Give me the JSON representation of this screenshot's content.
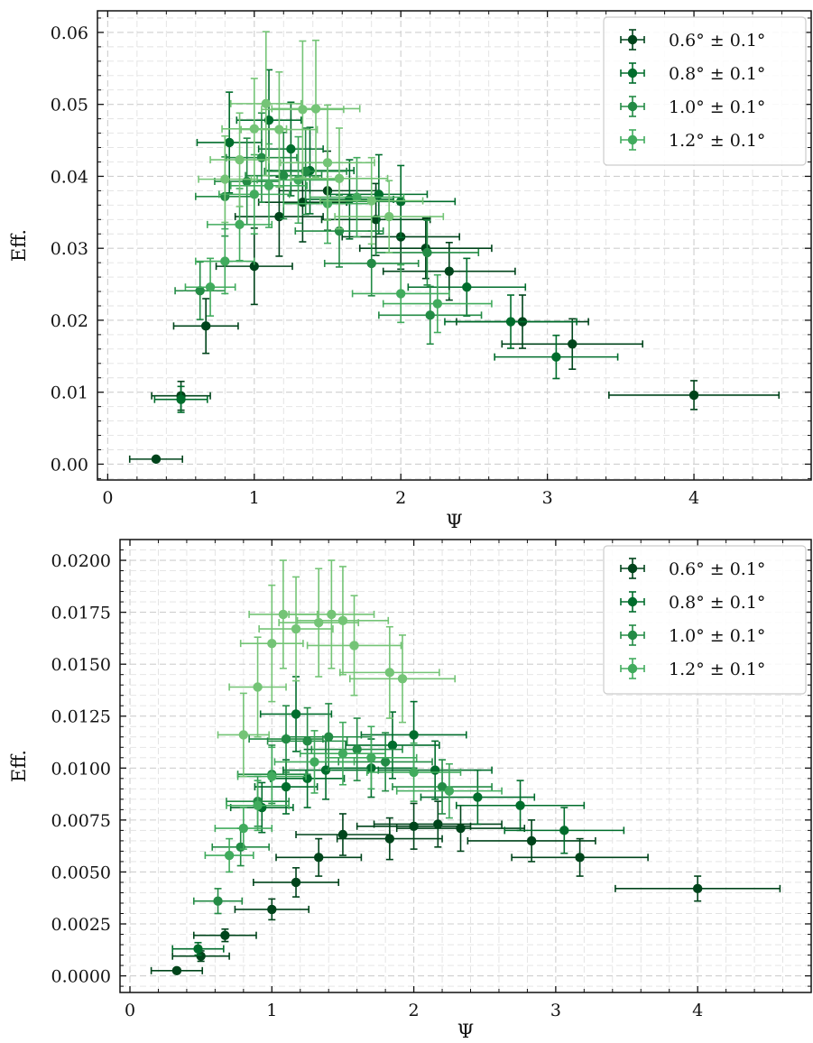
{
  "chart_data": [
    {
      "type": "scatter",
      "title": "",
      "xlabel": "Ψ",
      "ylabel": "Eff.",
      "xlim": [
        -0.07,
        4.8
      ],
      "ylim": [
        -0.0022,
        0.063
      ],
      "x_ticks": [
        0,
        1,
        2,
        3,
        4
      ],
      "x_tick_labels": [
        "0",
        "1",
        "2",
        "3",
        "4"
      ],
      "y_ticks": [
        0.0,
        0.01,
        0.02,
        0.03,
        0.04,
        0.05,
        0.06
      ],
      "y_tick_labels": [
        "0.00",
        "0.01",
        "0.02",
        "0.03",
        "0.04",
        "0.05",
        "0.06"
      ],
      "grid": true,
      "legend_position": "top-right",
      "series": [
        {
          "name": "0.6$^\\circ \\pm 0.1^\\circ$",
          "label": "0.6° ± 0.1°",
          "color": "#00441b",
          "points": [
            {
              "x": 0.33,
              "y": 0.0007,
              "xerr": 0.18,
              "yerr": 0.0003
            },
            {
              "x": 0.5,
              "y": 0.0095,
              "xerr": 0.2,
              "yerr": 0.002
            },
            {
              "x": 0.67,
              "y": 0.0192,
              "xerr": 0.22,
              "yerr": 0.0038
            },
            {
              "x": 1.0,
              "y": 0.0275,
              "xerr": 0.26,
              "yerr": 0.0053
            },
            {
              "x": 1.17,
              "y": 0.0344,
              "xerr": 0.3,
              "yerr": 0.0055
            },
            {
              "x": 1.33,
              "y": 0.0364,
              "xerr": 0.3,
              "yerr": 0.0055
            },
            {
              "x": 1.5,
              "y": 0.038,
              "xerr": 0.33,
              "yerr": 0.0055
            },
            {
              "x": 1.83,
              "y": 0.034,
              "xerr": 0.37,
              "yerr": 0.005
            },
            {
              "x": 2.0,
              "y": 0.0316,
              "xerr": 0.4,
              "yerr": 0.0045
            },
            {
              "x": 2.17,
              "y": 0.03,
              "xerr": 0.45,
              "yerr": 0.0042
            },
            {
              "x": 2.33,
              "y": 0.0268,
              "xerr": 0.45,
              "yerr": 0.004
            },
            {
              "x": 2.83,
              "y": 0.0198,
              "xerr": 0.45,
              "yerr": 0.0037
            },
            {
              "x": 3.17,
              "y": 0.0167,
              "xerr": 0.48,
              "yerr": 0.0035
            },
            {
              "x": 4.0,
              "y": 0.0096,
              "xerr": 0.58,
              "yerr": 0.002
            }
          ]
        },
        {
          "name": "0.8$^\\circ \\pm 0.1^\\circ$",
          "label": "0.8° ± 0.1°",
          "color": "#006d2c",
          "points": [
            {
              "x": 0.5,
              "y": 0.009,
              "xerr": 0.18,
              "yerr": 0.0018
            },
            {
              "x": 0.83,
              "y": 0.0447,
              "xerr": 0.22,
              "yerr": 0.007
            },
            {
              "x": 1.1,
              "y": 0.0478,
              "xerr": 0.22,
              "yerr": 0.007
            },
            {
              "x": 1.25,
              "y": 0.0438,
              "xerr": 0.22,
              "yerr": 0.0065
            },
            {
              "x": 1.38,
              "y": 0.0408,
              "xerr": 0.3,
              "yerr": 0.006
            },
            {
              "x": 1.65,
              "y": 0.0368,
              "xerr": 0.3,
              "yerr": 0.0055
            },
            {
              "x": 1.85,
              "y": 0.0375,
              "xerr": 0.33,
              "yerr": 0.0055
            },
            {
              "x": 2.0,
              "y": 0.0365,
              "xerr": 0.37,
              "yerr": 0.005
            },
            {
              "x": 2.45,
              "y": 0.0246,
              "xerr": 0.4,
              "yerr": 0.004
            },
            {
              "x": 2.75,
              "y": 0.0198,
              "xerr": 0.45,
              "yerr": 0.0037
            },
            {
              "x": 3.06,
              "y": 0.0149,
              "xerr": 0.42,
              "yerr": 0.003
            }
          ]
        },
        {
          "name": "1.0$^\\circ \\pm 0.1^\\circ$",
          "label": "1.0° ± 0.1°",
          "color": "#238b45",
          "points": [
            {
              "x": 0.63,
              "y": 0.0241,
              "xerr": 0.17,
              "yerr": 0.004
            },
            {
              "x": 0.8,
              "y": 0.0372,
              "xerr": 0.2,
              "yerr": 0.0055
            },
            {
              "x": 0.95,
              "y": 0.0393,
              "xerr": 0.22,
              "yerr": 0.006
            },
            {
              "x": 1.05,
              "y": 0.0426,
              "xerr": 0.24,
              "yerr": 0.0062
            },
            {
              "x": 1.2,
              "y": 0.0401,
              "xerr": 0.26,
              "yerr": 0.006
            },
            {
              "x": 1.35,
              "y": 0.0407,
              "xerr": 0.28,
              "yerr": 0.006
            },
            {
              "x": 1.58,
              "y": 0.0324,
              "xerr": 0.3,
              "yerr": 0.005
            },
            {
              "x": 1.8,
              "y": 0.0279,
              "xerr": 0.32,
              "yerr": 0.0045
            },
            {
              "x": 2.18,
              "y": 0.0294,
              "xerr": 0.35,
              "yerr": 0.0045
            },
            {
              "x": 2.2,
              "y": 0.0207,
              "xerr": 0.35,
              "yerr": 0.004
            }
          ]
        },
        {
          "name": "1.2$^\\circ \\pm 0.1^\\circ$",
          "label": "1.2° ± 0.1°",
          "color": "#41ab5d",
          "points": [
            {
              "x": 0.7,
              "y": 0.0246,
              "xerr": 0.17,
              "yerr": 0.004
            },
            {
              "x": 0.8,
              "y": 0.0282,
              "xerr": 0.2,
              "yerr": 0.0045
            },
            {
              "x": 0.9,
              "y": 0.0333,
              "xerr": 0.22,
              "yerr": 0.005
            },
            {
              "x": 1.0,
              "y": 0.0375,
              "xerr": 0.24,
              "yerr": 0.0055
            },
            {
              "x": 1.1,
              "y": 0.0387,
              "xerr": 0.26,
              "yerr": 0.0058
            },
            {
              "x": 1.3,
              "y": 0.0395,
              "xerr": 0.28,
              "yerr": 0.006
            },
            {
              "x": 1.5,
              "y": 0.0362,
              "xerr": 0.3,
              "yerr": 0.0055
            },
            {
              "x": 1.7,
              "y": 0.0371,
              "xerr": 0.32,
              "yerr": 0.0055
            },
            {
              "x": 2.0,
              "y": 0.0237,
              "xerr": 0.33,
              "yerr": 0.004
            },
            {
              "x": 2.25,
              "y": 0.0223,
              "xerr": 0.37,
              "yerr": 0.004
            }
          ]
        },
        {
          "name": "",
          "label": "",
          "color": "#74c476",
          "points": [
            {
              "x": 0.8,
              "y": 0.0396,
              "xerr": 0.18,
              "yerr": 0.006
            },
            {
              "x": 0.9,
              "y": 0.0423,
              "xerr": 0.2,
              "yerr": 0.0065
            },
            {
              "x": 1.0,
              "y": 0.0466,
              "xerr": 0.22,
              "yerr": 0.007
            },
            {
              "x": 1.08,
              "y": 0.0501,
              "xerr": 0.24,
              "yerr": 0.01
            },
            {
              "x": 1.17,
              "y": 0.0465,
              "xerr": 0.26,
              "yerr": 0.008
            },
            {
              "x": 1.33,
              "y": 0.0493,
              "xerr": 0.28,
              "yerr": 0.0095
            },
            {
              "x": 1.42,
              "y": 0.0494,
              "xerr": 0.3,
              "yerr": 0.0095
            },
            {
              "x": 1.5,
              "y": 0.0419,
              "xerr": 0.32,
              "yerr": 0.008
            },
            {
              "x": 1.58,
              "y": 0.0397,
              "xerr": 0.33,
              "yerr": 0.007
            },
            {
              "x": 1.8,
              "y": 0.0366,
              "xerr": 0.35,
              "yerr": 0.006
            },
            {
              "x": 1.92,
              "y": 0.0344,
              "xerr": 0.37,
              "yerr": 0.005
            }
          ]
        }
      ]
    },
    {
      "type": "scatter",
      "title": "",
      "xlabel": "Ψ",
      "ylabel": "Eff.",
      "xlim": [
        -0.07,
        4.8
      ],
      "ylim": [
        -0.0008,
        0.021
      ],
      "x_ticks": [
        0,
        1,
        2,
        3,
        4
      ],
      "x_tick_labels": [
        "0",
        "1",
        "2",
        "3",
        "4"
      ],
      "y_ticks": [
        0.0,
        0.0025,
        0.005,
        0.0075,
        0.01,
        0.0125,
        0.015,
        0.0175,
        0.02
      ],
      "y_tick_labels": [
        "0.0000",
        "0.0025",
        "0.0050",
        "0.0075",
        "0.0100",
        "0.0125",
        "0.0150",
        "0.0175",
        "0.0200"
      ],
      "grid": true,
      "legend_position": "top-right",
      "series": [
        {
          "name": "0.6$^\\circ \\pm 0.1^\\circ$",
          "label": "0.6° ± 0.1°",
          "color": "#00441b",
          "points": [
            {
              "x": 0.33,
              "y": 0.00025,
              "xerr": 0.18,
              "yerr": 0.0001
            },
            {
              "x": 0.5,
              "y": 0.00095,
              "xerr": 0.2,
              "yerr": 0.00025
            },
            {
              "x": 0.67,
              "y": 0.00195,
              "xerr": 0.22,
              "yerr": 0.0003
            },
            {
              "x": 1.0,
              "y": 0.0032,
              "xerr": 0.26,
              "yerr": 0.0005
            },
            {
              "x": 1.17,
              "y": 0.0045,
              "xerr": 0.3,
              "yerr": 0.0007
            },
            {
              "x": 1.33,
              "y": 0.0057,
              "xerr": 0.3,
              "yerr": 0.0009
            },
            {
              "x": 1.5,
              "y": 0.0068,
              "xerr": 0.33,
              "yerr": 0.001
            },
            {
              "x": 1.83,
              "y": 0.0066,
              "xerr": 0.37,
              "yerr": 0.001
            },
            {
              "x": 2.0,
              "y": 0.0072,
              "xerr": 0.4,
              "yerr": 0.0011
            },
            {
              "x": 2.17,
              "y": 0.0073,
              "xerr": 0.45,
              "yerr": 0.0011
            },
            {
              "x": 2.33,
              "y": 0.0071,
              "xerr": 0.45,
              "yerr": 0.0011
            },
            {
              "x": 2.83,
              "y": 0.0065,
              "xerr": 0.45,
              "yerr": 0.001
            },
            {
              "x": 3.17,
              "y": 0.0057,
              "xerr": 0.48,
              "yerr": 0.0009
            },
            {
              "x": 4.0,
              "y": 0.0042,
              "xerr": 0.58,
              "yerr": 0.0006
            }
          ]
        },
        {
          "name": "0.8$^\\circ \\pm 0.1^\\circ$",
          "label": "0.8° ± 0.1°",
          "color": "#006d2c",
          "points": [
            {
              "x": 0.48,
              "y": 0.0013,
              "xerr": 0.18,
              "yerr": 0.0003
            },
            {
              "x": 0.93,
              "y": 0.0081,
              "xerr": 0.22,
              "yerr": 0.0012
            },
            {
              "x": 1.1,
              "y": 0.0091,
              "xerr": 0.22,
              "yerr": 0.0013
            },
            {
              "x": 1.17,
              "y": 0.0126,
              "xerr": 0.25,
              "yerr": 0.0018
            },
            {
              "x": 1.25,
              "y": 0.0095,
              "xerr": 0.26,
              "yerr": 0.0014
            },
            {
              "x": 1.38,
              "y": 0.0099,
              "xerr": 0.3,
              "yerr": 0.0014
            },
            {
              "x": 1.7,
              "y": 0.01,
              "xerr": 0.3,
              "yerr": 0.0014
            },
            {
              "x": 1.85,
              "y": 0.0111,
              "xerr": 0.33,
              "yerr": 0.0016
            },
            {
              "x": 2.0,
              "y": 0.0116,
              "xerr": 0.37,
              "yerr": 0.0016
            },
            {
              "x": 2.15,
              "y": 0.0099,
              "xerr": 0.4,
              "yerr": 0.0014
            },
            {
              "x": 2.45,
              "y": 0.0086,
              "xerr": 0.4,
              "yerr": 0.0013
            },
            {
              "x": 2.75,
              "y": 0.0082,
              "xerr": 0.45,
              "yerr": 0.0012
            },
            {
              "x": 3.06,
              "y": 0.007,
              "xerr": 0.42,
              "yerr": 0.0011
            }
          ]
        },
        {
          "name": "1.0$^\\circ \\pm 0.1^\\circ$",
          "label": "1.0° ± 0.1°",
          "color": "#238b45",
          "points": [
            {
              "x": 0.62,
              "y": 0.0036,
              "xerr": 0.17,
              "yerr": 0.0006
            },
            {
              "x": 0.78,
              "y": 0.0062,
              "xerr": 0.2,
              "yerr": 0.0009
            },
            {
              "x": 0.9,
              "y": 0.0084,
              "xerr": 0.22,
              "yerr": 0.0012
            },
            {
              "x": 1.0,
              "y": 0.0097,
              "xerr": 0.24,
              "yerr": 0.0014
            },
            {
              "x": 1.1,
              "y": 0.0114,
              "xerr": 0.26,
              "yerr": 0.0016
            },
            {
              "x": 1.25,
              "y": 0.0113,
              "xerr": 0.28,
              "yerr": 0.0016
            },
            {
              "x": 1.4,
              "y": 0.0115,
              "xerr": 0.3,
              "yerr": 0.0016
            },
            {
              "x": 1.6,
              "y": 0.0109,
              "xerr": 0.32,
              "yerr": 0.0015
            },
            {
              "x": 1.8,
              "y": 0.0103,
              "xerr": 0.33,
              "yerr": 0.0014
            },
            {
              "x": 2.2,
              "y": 0.0091,
              "xerr": 0.35,
              "yerr": 0.0013
            }
          ]
        },
        {
          "name": "1.2$^\\circ \\pm 0.1^\\circ$",
          "label": "1.2° ± 0.1°",
          "color": "#41ab5d",
          "points": [
            {
              "x": 0.7,
              "y": 0.0058,
              "xerr": 0.17,
              "yerr": 0.0008
            },
            {
              "x": 0.8,
              "y": 0.0071,
              "xerr": 0.2,
              "yerr": 0.001
            },
            {
              "x": 0.9,
              "y": 0.0082,
              "xerr": 0.22,
              "yerr": 0.0012
            },
            {
              "x": 1.0,
              "y": 0.0096,
              "xerr": 0.24,
              "yerr": 0.0014
            },
            {
              "x": 1.3,
              "y": 0.0103,
              "xerr": 0.28,
              "yerr": 0.0015
            },
            {
              "x": 1.5,
              "y": 0.0107,
              "xerr": 0.3,
              "yerr": 0.0015
            },
            {
              "x": 1.7,
              "y": 0.0105,
              "xerr": 0.32,
              "yerr": 0.0015
            },
            {
              "x": 2.0,
              "y": 0.0098,
              "xerr": 0.33,
              "yerr": 0.0014
            },
            {
              "x": 2.25,
              "y": 0.0089,
              "xerr": 0.37,
              "yerr": 0.0013
            }
          ]
        },
        {
          "name": "",
          "label": "",
          "color": "#74c476",
          "points": [
            {
              "x": 0.8,
              "y": 0.0116,
              "xerr": 0.18,
              "yerr": 0.002
            },
            {
              "x": 0.9,
              "y": 0.0139,
              "xerr": 0.2,
              "yerr": 0.0024
            },
            {
              "x": 1.0,
              "y": 0.016,
              "xerr": 0.22,
              "yerr": 0.0028
            },
            {
              "x": 1.08,
              "y": 0.0174,
              "xerr": 0.24,
              "yerr": 0.0026
            },
            {
              "x": 1.17,
              "y": 0.0167,
              "xerr": 0.26,
              "yerr": 0.0025
            },
            {
              "x": 1.33,
              "y": 0.017,
              "xerr": 0.28,
              "yerr": 0.0026
            },
            {
              "x": 1.42,
              "y": 0.0174,
              "xerr": 0.3,
              "yerr": 0.0026
            },
            {
              "x": 1.5,
              "y": 0.0171,
              "xerr": 0.32,
              "yerr": 0.0026
            },
            {
              "x": 1.58,
              "y": 0.0159,
              "xerr": 0.33,
              "yerr": 0.0024
            },
            {
              "x": 1.83,
              "y": 0.0146,
              "xerr": 0.35,
              "yerr": 0.0022
            },
            {
              "x": 1.92,
              "y": 0.0143,
              "xerr": 0.37,
              "yerr": 0.0021
            }
          ]
        }
      ]
    }
  ]
}
